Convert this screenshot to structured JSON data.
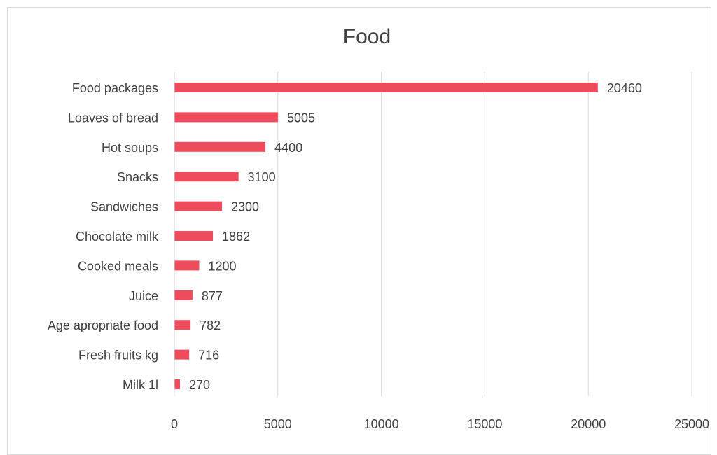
{
  "chart_data": {
    "type": "bar",
    "orientation": "horizontal",
    "title": "Food",
    "xlabel": "",
    "ylabel": "",
    "categories": [
      "Food packages",
      "Loaves of bread",
      "Hot soups",
      "Snacks",
      "Sandwiches",
      "Chocolate milk",
      "Cooked meals",
      "Juice",
      "Age apropriate food",
      "Fresh fruits kg",
      "Milk 1l"
    ],
    "values": [
      20460,
      5005,
      4400,
      3100,
      2300,
      1862,
      1200,
      877,
      782,
      716,
      270
    ],
    "xlim": [
      0,
      25000
    ],
    "xticks": [
      "0",
      "5000",
      "10000",
      "15000",
      "20000",
      "25000"
    ],
    "grid": "vertical",
    "legend": "none",
    "bar_color": "#ee4b5c"
  }
}
